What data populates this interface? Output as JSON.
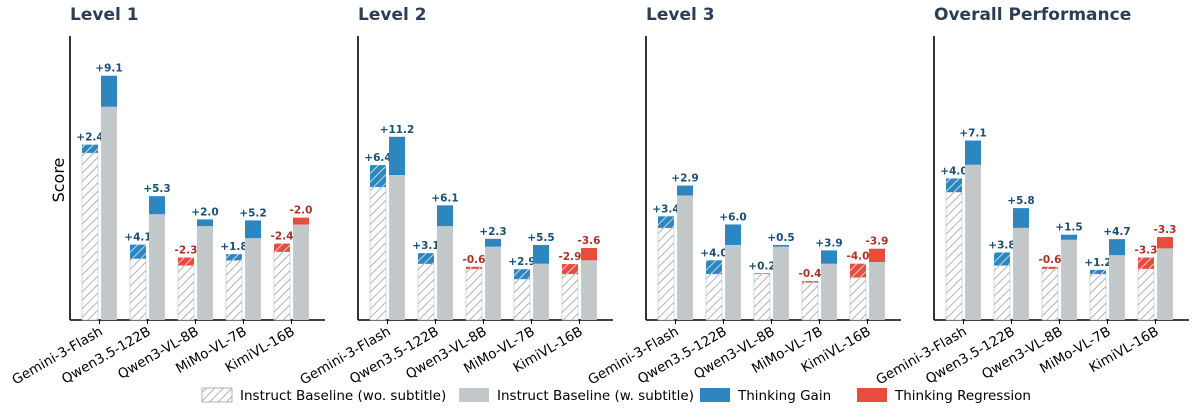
{
  "colors": {
    "baseline_wo": "#ffffff",
    "baseline_w": "#c3c8cb",
    "gain": "#2e86c1",
    "regression": "#e74c3c",
    "hatch": "#9aa0a4",
    "gain_label": "#1b4f72",
    "regression_label": "#a93226",
    "title": "#2c3e55"
  },
  "ylabel": "Score",
  "legend": [
    {
      "key": "baseline_wo",
      "label": "Instruct Baseline (wo. subtitle)",
      "style": "hatch"
    },
    {
      "key": "baseline_w",
      "label": "Instruct Baseline (w. subtitle)",
      "style": "solid"
    },
    {
      "key": "gain",
      "label": "Thinking Gain",
      "style": "solid"
    },
    {
      "key": "regression",
      "label": "Thinking Regression",
      "style": "solid"
    }
  ],
  "chart_data": [
    {
      "type": "bar",
      "title": "Level 1",
      "categories": [
        "Gemini-3-Flash",
        "Qwen3.5-122B",
        "Qwen3-VL-8B",
        "MiMo-VL-7B",
        "KimiVL-16B"
      ],
      "ylim": [
        0,
        85
      ],
      "series": [
        {
          "name": "Instruct Baseline (wo. subtitle)",
          "values": [
            49.0,
            18.0,
            16.0,
            17.5,
            20.0
          ]
        },
        {
          "name": "Instruct Baseline (w. subtitle)",
          "values": [
            62.5,
            31.0,
            27.5,
            24.0,
            28.0
          ]
        }
      ],
      "deltas_wo": [
        "+2.4",
        "+4.1",
        "-2.3",
        "+1.8",
        "-2.4"
      ],
      "deltas_w": [
        "+9.1",
        "+5.3",
        "+2.0",
        "+5.2",
        "-2.0"
      ]
    },
    {
      "type": "bar",
      "title": "Level 2",
      "categories": [
        "Gemini-3-Flash",
        "Qwen3.5-122B",
        "Qwen3-VL-8B",
        "MiMo-VL-7B",
        "KimiVL-16B"
      ],
      "ylim": [
        0,
        85
      ],
      "series": [
        {
          "name": "Instruct Baseline (wo. subtitle)",
          "values": [
            39.0,
            16.5,
            15.0,
            12.0,
            13.5
          ]
        },
        {
          "name": "Instruct Baseline (w. subtitle)",
          "values": [
            42.5,
            27.5,
            21.5,
            16.5,
            17.5
          ]
        }
      ],
      "deltas_wo": [
        "+6.4",
        "+3.1",
        "-0.6",
        "+2.9",
        "-2.9"
      ],
      "deltas_w": [
        "+11.2",
        "+6.1",
        "+2.3",
        "+5.5",
        "-3.6"
      ]
    },
    {
      "type": "bar",
      "title": "Level 3",
      "categories": [
        "Gemini-3-Flash",
        "Qwen3.5-122B",
        "Qwen3-VL-8B",
        "MiMo-VL-7B",
        "KimiVL-16B"
      ],
      "ylim": [
        0,
        85
      ],
      "series": [
        {
          "name": "Instruct Baseline (wo. subtitle)",
          "values": [
            27.0,
            13.5,
            13.5,
            11.0,
            12.5
          ]
        },
        {
          "name": "Instruct Baseline (w. subtitle)",
          "values": [
            36.5,
            22.0,
            21.5,
            16.5,
            17.0
          ]
        }
      ],
      "deltas_wo": [
        "+3.4",
        "+4.0",
        "+0.2",
        "-0.4",
        "-4.0"
      ],
      "deltas_w": [
        "+2.9",
        "+6.0",
        "+0.5",
        "+3.9",
        "-3.9"
      ]
    },
    {
      "type": "bar",
      "title": "Overall Performance",
      "categories": [
        "Gemini-3-Flash",
        "Qwen3.5-122B",
        "Qwen3-VL-8B",
        "MiMo-VL-7B",
        "KimiVL-16B"
      ],
      "ylim": [
        0,
        85
      ],
      "series": [
        {
          "name": "Instruct Baseline (wo. subtitle)",
          "values": [
            37.5,
            16.0,
            15.0,
            13.5,
            15.0
          ]
        },
        {
          "name": "Instruct Baseline (w. subtitle)",
          "values": [
            45.5,
            27.0,
            23.5,
            19.0,
            21.0
          ]
        }
      ],
      "deltas_wo": [
        "+4.0",
        "+3.8",
        "-0.6",
        "+1.2",
        "-3.3"
      ],
      "deltas_w": [
        "+7.1",
        "+5.8",
        "+1.5",
        "+4.7",
        "-3.3"
      ]
    }
  ]
}
